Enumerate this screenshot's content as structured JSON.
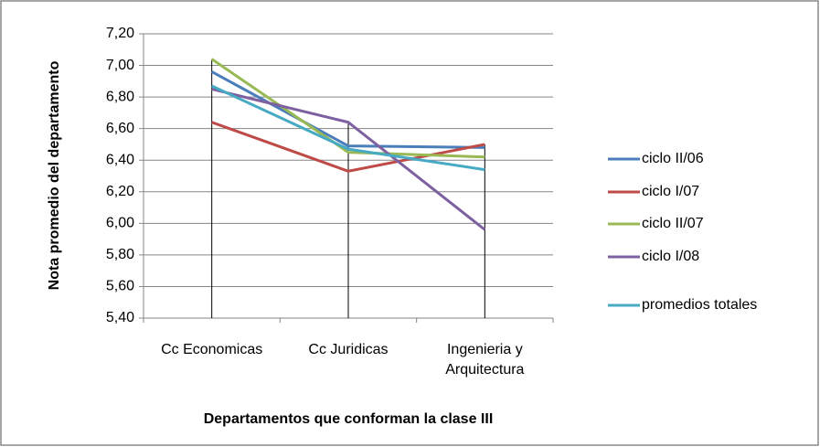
{
  "chart_data": {
    "type": "line",
    "y_label": "Nota promedio del departamento",
    "x_label": "Departamentos que conforman la clase III",
    "categories": [
      "Cc Economicas",
      "Cc Juridicas",
      "Ingenieria y Arquitectura"
    ],
    "series": [
      {
        "name": "ciclo II/06",
        "color": "#4a7ebb",
        "values": [
          6.96,
          6.49,
          6.48
        ]
      },
      {
        "name": "ciclo I/07",
        "color": "#be4b48",
        "values": [
          6.64,
          6.33,
          6.5
        ]
      },
      {
        "name": "ciclo II/07",
        "color": "#98b954",
        "values": [
          7.04,
          6.45,
          6.42
        ]
      },
      {
        "name": "ciclo I/08",
        "color": "#7d60a0",
        "values": [
          6.85,
          6.64,
          5.96
        ]
      },
      {
        "name": "promedios totales",
        "color": "#46aac5",
        "values": [
          6.87,
          6.47,
          6.34
        ]
      }
    ],
    "ylim": [
      5.4,
      7.2
    ],
    "yticks": [
      {
        "value": 5.4,
        "label": "5,40"
      },
      {
        "value": 5.6,
        "label": "5,60"
      },
      {
        "value": 5.8,
        "label": "5,80"
      },
      {
        "value": 6.0,
        "label": "6,00"
      },
      {
        "value": 6.2,
        "label": "6,20"
      },
      {
        "value": 6.4,
        "label": "6,40"
      },
      {
        "value": 6.6,
        "label": "6,60"
      },
      {
        "value": 6.8,
        "label": "6,80"
      },
      {
        "value": 7.0,
        "label": "7,00"
      },
      {
        "value": 7.2,
        "label": "7,20"
      }
    ],
    "grid": true,
    "legend": "right"
  }
}
